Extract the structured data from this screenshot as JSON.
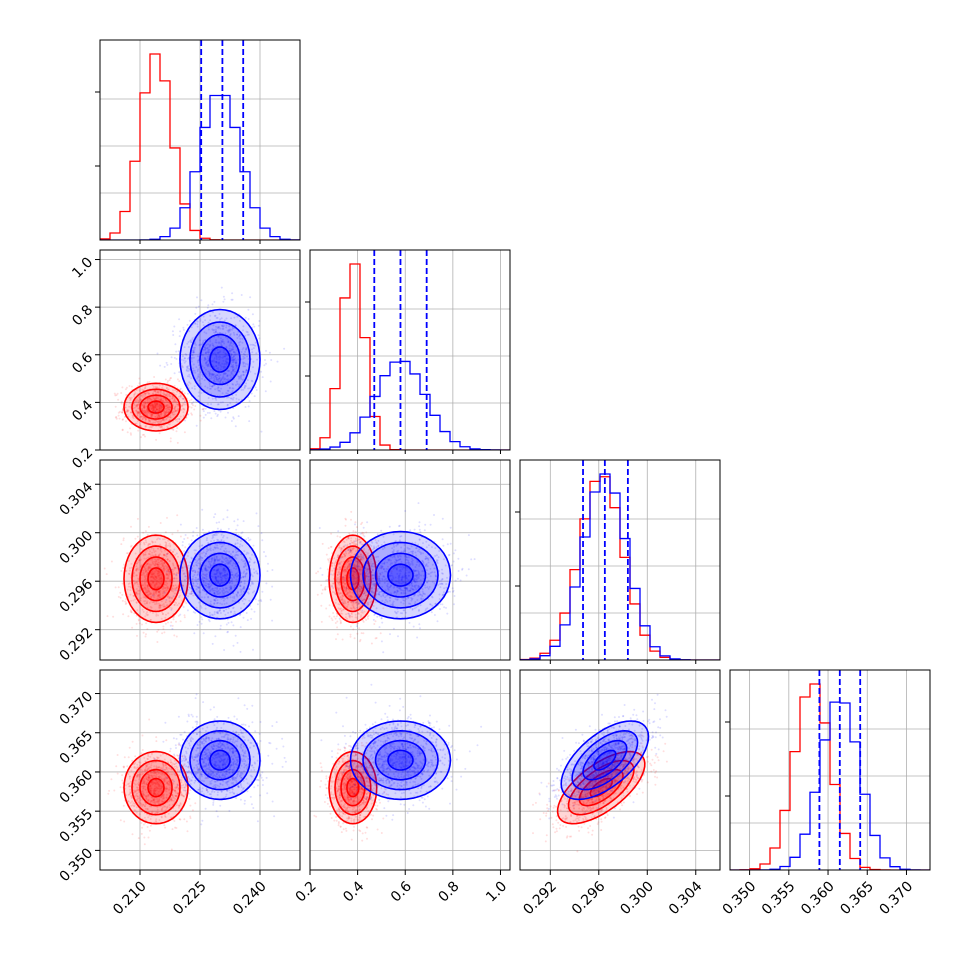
{
  "chart_data": {
    "type": "corner",
    "title": "",
    "colors": {
      "series_a": "#ff0000",
      "series_b": "#0000ff"
    },
    "grid": true,
    "parameters": [
      {
        "range": [
          0.2,
          0.25
        ],
        "ticks": [
          0.21,
          0.225,
          0.24
        ],
        "tick_labels": [
          "0.210",
          "0.225",
          "0.240"
        ]
      },
      {
        "range": [
          0.2,
          1.04
        ],
        "ticks": [
          0.2,
          0.4,
          0.6,
          0.8,
          1.0
        ],
        "tick_labels": [
          "0.2",
          "0.4",
          "0.6",
          "0.8",
          "1.0"
        ]
      },
      {
        "range": [
          0.2895,
          0.306
        ],
        "ticks": [
          0.292,
          0.296,
          0.3,
          0.304
        ],
        "tick_labels": [
          "0.292",
          "0.296",
          "0.300",
          "0.304"
        ]
      },
      {
        "range": [
          0.3475,
          0.373
        ],
        "ticks": [
          0.35,
          0.355,
          0.36,
          0.365,
          0.37
        ],
        "tick_labels": [
          "0.350",
          "0.355",
          "0.360",
          "0.365",
          "0.370"
        ]
      }
    ],
    "series": [
      {
        "color": "#ff0000",
        "mean": [
          0.214,
          0.38,
          0.2962,
          0.358
        ],
        "std": [
          0.004,
          0.05,
          0.0018,
          0.0023
        ],
        "corr": {
          "0-1": 0.0,
          "0-2": 0.0,
          "0-3": 0.0,
          "1-2": 0.0,
          "1-3": 0.0,
          "2-3": 0.65
        }
      },
      {
        "color": "#0000ff",
        "mean": [
          0.23,
          0.58,
          0.2965,
          0.3615
        ],
        "std": [
          0.005,
          0.105,
          0.0018,
          0.0025
        ],
        "corr": {
          "0-1": 0.0,
          "0-2": 0.0,
          "0-3": 0.0,
          "1-2": 0.0,
          "1-3": 0.0,
          "2-3": 0.6
        }
      }
    ],
    "quantile_lines": [
      [
        0.2253,
        0.2306,
        0.2358
      ],
      [
        0.47,
        0.58,
        0.69
      ],
      [
        0.2947,
        0.2965,
        0.2984
      ],
      [
        0.3589,
        0.3615,
        0.3641
      ]
    ],
    "histogram_bins": 20
  }
}
